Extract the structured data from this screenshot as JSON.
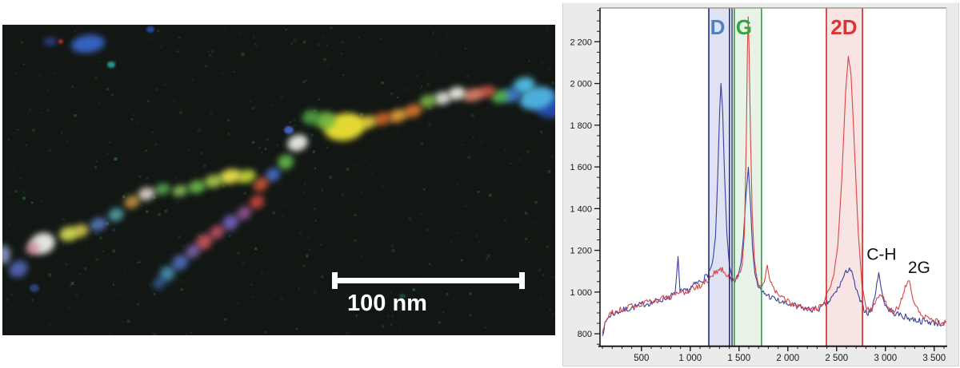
{
  "figure": {
    "description": "TERS map of a branched carbon nanostructure with corresponding Raman spectra"
  },
  "left_image": {
    "background": "#121714",
    "scale_bar": {
      "label": "100 nm"
    },
    "blobs": [
      [
        692,
        100,
        26,
        16,
        -15,
        "#2b4fb8",
        0.9
      ],
      [
        668,
        92,
        22,
        14,
        -15,
        "#4fb6e6",
        0.95
      ],
      [
        652,
        76,
        14,
        10,
        -15,
        "#55c4ea",
        0.9
      ],
      [
        636,
        88,
        12,
        9,
        -10,
        "#3f7fd4",
        0.9
      ],
      [
        622,
        90,
        11,
        8,
        -10,
        "#57b84e",
        0.9
      ],
      [
        605,
        84,
        12,
        7,
        -12,
        "#cf5a48",
        0.9
      ],
      [
        588,
        88,
        13,
        8,
        -12,
        "#e2836a",
        0.9
      ],
      [
        568,
        86,
        11,
        8,
        -10,
        "#efece2",
        0.95
      ],
      [
        550,
        92,
        11,
        8,
        -10,
        "#e6e6de",
        0.9
      ],
      [
        532,
        96,
        11,
        8,
        -14,
        "#7fb349",
        0.9
      ],
      [
        513,
        108,
        12,
        8,
        -18,
        "#d9782e",
        0.9
      ],
      [
        494,
        114,
        12,
        8,
        -18,
        "#e6a23b",
        0.9
      ],
      [
        475,
        118,
        11,
        8,
        -18,
        "#d2652c",
        0.9
      ],
      [
        457,
        122,
        11,
        8,
        -15,
        "#e4c93a",
        0.9
      ],
      [
        428,
        128,
        26,
        17,
        -10,
        "#efe336",
        0.95
      ],
      [
        404,
        120,
        13,
        11,
        -10,
        "#79bf42",
        0.9
      ],
      [
        386,
        116,
        11,
        9,
        -10,
        "#54ab46",
        0.85
      ],
      [
        369,
        148,
        13,
        10,
        -20,
        "#ecece6",
        0.95
      ],
      [
        358,
        132,
        6,
        5,
        0,
        "#4a66cc",
        0.9
      ],
      [
        354,
        172,
        10,
        9,
        -30,
        "#65bd4d",
        0.9
      ],
      [
        338,
        188,
        10,
        8,
        -35,
        "#4a74d2",
        0.85
      ],
      [
        323,
        200,
        10,
        8,
        -40,
        "#cc5436",
        0.9
      ],
      [
        305,
        190,
        12,
        8,
        -15,
        "#c8dc3e",
        0.9
      ],
      [
        285,
        190,
        14,
        9,
        -12,
        "#e6e04a",
        0.95
      ],
      [
        264,
        196,
        12,
        8,
        -12,
        "#a8cc48",
        0.9
      ],
      [
        243,
        203,
        11,
        8,
        -14,
        "#6dbb4e",
        0.9
      ],
      [
        222,
        208,
        10,
        7,
        -14,
        "#8ec464",
        0.85
      ],
      [
        200,
        206,
        10,
        7,
        -14,
        "#5dae52",
        0.85
      ],
      [
        180,
        212,
        11,
        8,
        -16,
        "#e2d5cc",
        0.9
      ],
      [
        162,
        222,
        10,
        8,
        -20,
        "#c49a42",
        0.85
      ],
      [
        142,
        238,
        10,
        8,
        -24,
        "#57a8ae",
        0.85
      ],
      [
        120,
        250,
        11,
        8,
        -20,
        "#5b7ec8",
        0.85
      ],
      [
        98,
        258,
        10,
        8,
        -16,
        "#d8ce52",
        0.85
      ],
      [
        83,
        262,
        12,
        9,
        -12,
        "#d8e056",
        0.9
      ],
      [
        50,
        274,
        16,
        13,
        -20,
        "#efefe8",
        0.95
      ],
      [
        38,
        280,
        9,
        8,
        -20,
        "#d690a6",
        0.8
      ],
      [
        20,
        306,
        12,
        10,
        -30,
        "#5a6cc8",
        0.85
      ],
      [
        2,
        288,
        8,
        12,
        0,
        "#9aa8dc",
        0.8
      ],
      [
        318,
        222,
        10,
        8,
        -40,
        "#c64a3a",
        0.9
      ],
      [
        302,
        236,
        10,
        8,
        -40,
        "#a45aa0",
        0.8
      ],
      [
        285,
        248,
        11,
        9,
        -40,
        "#7a66c6",
        0.85
      ],
      [
        268,
        260,
        10,
        8,
        -40,
        "#c25468",
        0.85
      ],
      [
        252,
        272,
        11,
        9,
        -40,
        "#cc5560",
        0.9
      ],
      [
        238,
        284,
        10,
        8,
        -40,
        "#8a6ab8",
        0.8
      ],
      [
        222,
        298,
        11,
        9,
        -40,
        "#5272c4",
        0.85
      ],
      [
        206,
        312,
        10,
        9,
        -40,
        "#4e9ec2",
        0.8
      ],
      [
        196,
        324,
        8,
        7,
        -40,
        "#3f6ab0",
        0.7
      ],
      [
        107,
        24,
        21,
        11,
        -8,
        "#3a6ad4",
        0.9
      ],
      [
        60,
        21,
        8,
        4,
        0,
        "#3a58c0",
        0.85
      ],
      [
        73,
        21,
        3,
        3,
        0,
        "#b23430",
        0.9
      ],
      [
        185,
        6,
        5,
        4,
        0,
        "#2f50c0",
        0.8
      ],
      [
        136,
        50,
        5,
        4,
        0,
        "#2fb0ac",
        0.8
      ],
      [
        40,
        330,
        6,
        5,
        0,
        "#4060b8",
        0.55
      ],
      [
        500,
        340,
        4,
        3,
        0,
        "#2c8060",
        0.5
      ]
    ]
  },
  "chart_data": {
    "type": "line",
    "title": "",
    "xlabel": "",
    "ylabel": "",
    "x_range": [
      75,
      3625
    ],
    "y_range": [
      743,
      2362
    ],
    "grid": false,
    "legend_position": "none",
    "x_axis": {
      "major": [
        {
          "v": 500,
          "label": "500"
        },
        {
          "v": 1000,
          "label": "1 000"
        },
        {
          "v": 1500,
          "label": "1 500"
        },
        {
          "v": 2000,
          "label": "2 000"
        },
        {
          "v": 2500,
          "label": "2 500"
        },
        {
          "v": 3000,
          "label": "3 000"
        },
        {
          "v": 3500,
          "label": "3 500"
        }
      ],
      "minor_start": 100,
      "minor_end": 3600,
      "minor_step": 100
    },
    "y_axis": {
      "major": [
        {
          "v": 800,
          "label": "800"
        },
        {
          "v": 1000,
          "label": "1 000"
        },
        {
          "v": 1200,
          "label": "1 200"
        },
        {
          "v": 1400,
          "label": "1 400"
        },
        {
          "v": 1600,
          "label": "1 600"
        },
        {
          "v": 1800,
          "label": "1 800"
        },
        {
          "v": 2000,
          "label": "2 000"
        },
        {
          "v": 2200,
          "label": "2 200"
        }
      ],
      "minor_start": 750,
      "minor_end": 2350,
      "minor_step": 50
    },
    "bands": [
      {
        "label": "D",
        "x1": 1190,
        "x2": 1402,
        "fill": "#4a5eb8",
        "fill_opacity": 0.18,
        "edge": "#1f2d7a",
        "label_color": "#4f81bd",
        "label_x": 1280
      },
      {
        "label": "G",
        "x1": 1451,
        "x2": 1730,
        "fill": "#5fae5f",
        "fill_opacity": 0.15,
        "edge": "#2e9e44",
        "label_color": "#2fa73c",
        "label_x": 1550
      },
      {
        "label": "2D",
        "x1": 2395,
        "x2": 2765,
        "fill": "#d96060",
        "fill_opacity": 0.17,
        "edge": "#cc2a2a",
        "label_color": "#e03232",
        "label_x": 2575
      }
    ],
    "separator_line": {
      "x": 1428,
      "color": "#1b2a6e"
    },
    "annotations": [
      {
        "text": "C-H",
        "x": 2960,
        "y": 1185,
        "color": "#111111"
      },
      {
        "text": "2G",
        "x": 3345,
        "y": 1122,
        "color": "#111111"
      }
    ],
    "noise_amplitude": 16,
    "series": [
      {
        "name": "blue spectrum",
        "color": "#3a3f9e",
        "points": [
          [
            100,
            790
          ],
          [
            125,
            845
          ],
          [
            160,
            880
          ],
          [
            200,
            895
          ],
          [
            260,
            905
          ],
          [
            330,
            915
          ],
          [
            400,
            925
          ],
          [
            470,
            935
          ],
          [
            540,
            945
          ],
          [
            610,
            950
          ],
          [
            680,
            960
          ],
          [
            740,
            970
          ],
          [
            800,
            980
          ],
          [
            845,
            990
          ],
          [
            875,
            1170
          ],
          [
            895,
            1000
          ],
          [
            935,
            1000
          ],
          [
            980,
            1010
          ],
          [
            1030,
            1030
          ],
          [
            1080,
            1045
          ],
          [
            1130,
            1060
          ],
          [
            1180,
            1085
          ],
          [
            1225,
            1125
          ],
          [
            1258,
            1260
          ],
          [
            1282,
            1560
          ],
          [
            1302,
            1880
          ],
          [
            1315,
            2000
          ],
          [
            1332,
            1870
          ],
          [
            1352,
            1550
          ],
          [
            1375,
            1280
          ],
          [
            1400,
            1130
          ],
          [
            1430,
            1062
          ],
          [
            1462,
            1052
          ],
          [
            1492,
            1082
          ],
          [
            1520,
            1140
          ],
          [
            1545,
            1265
          ],
          [
            1572,
            1470
          ],
          [
            1596,
            1600
          ],
          [
            1616,
            1430
          ],
          [
            1638,
            1215
          ],
          [
            1662,
            1090
          ],
          [
            1692,
            1032
          ],
          [
            1730,
            1002
          ],
          [
            1780,
            988
          ],
          [
            1840,
            972
          ],
          [
            1900,
            958
          ],
          [
            1960,
            946
          ],
          [
            2020,
            940
          ],
          [
            2080,
            932
          ],
          [
            2140,
            926
          ],
          [
            2200,
            918
          ],
          [
            2260,
            915
          ],
          [
            2320,
            921
          ],
          [
            2380,
            936
          ],
          [
            2430,
            958
          ],
          [
            2480,
            992
          ],
          [
            2520,
            1022
          ],
          [
            2565,
            1065
          ],
          [
            2605,
            1102
          ],
          [
            2632,
            1115
          ],
          [
            2662,
            1082
          ],
          [
            2700,
            1012
          ],
          [
            2740,
            958
          ],
          [
            2782,
            916
          ],
          [
            2822,
            900
          ],
          [
            2862,
            918
          ],
          [
            2902,
            1005
          ],
          [
            2932,
            1100
          ],
          [
            2955,
            1018
          ],
          [
            2985,
            955
          ],
          [
            3025,
            920
          ],
          [
            3080,
            902
          ],
          [
            3140,
            892
          ],
          [
            3205,
            880
          ],
          [
            3280,
            870
          ],
          [
            3360,
            862
          ],
          [
            3440,
            858
          ],
          [
            3525,
            852
          ],
          [
            3600,
            846
          ],
          [
            3650,
            838
          ]
        ]
      },
      {
        "name": "red spectrum",
        "color": "#d94444",
        "points": [
          [
            100,
            800
          ],
          [
            125,
            852
          ],
          [
            160,
            886
          ],
          [
            200,
            900
          ],
          [
            260,
            910
          ],
          [
            330,
            920
          ],
          [
            400,
            930
          ],
          [
            470,
            940
          ],
          [
            545,
            950
          ],
          [
            620,
            958
          ],
          [
            700,
            966
          ],
          [
            780,
            976
          ],
          [
            860,
            986
          ],
          [
            940,
            998
          ],
          [
            1020,
            1012
          ],
          [
            1100,
            1030
          ],
          [
            1180,
            1055
          ],
          [
            1245,
            1088
          ],
          [
            1308,
            1115
          ],
          [
            1360,
            1092
          ],
          [
            1412,
            1066
          ],
          [
            1460,
            1060
          ],
          [
            1502,
            1082
          ],
          [
            1532,
            1132
          ],
          [
            1556,
            1290
          ],
          [
            1574,
            1720
          ],
          [
            1586,
            2160
          ],
          [
            1594,
            2320
          ],
          [
            1604,
            2140
          ],
          [
            1618,
            1740
          ],
          [
            1634,
            1380
          ],
          [
            1658,
            1150
          ],
          [
            1684,
            1062
          ],
          [
            1712,
            1032
          ],
          [
            1748,
            1030
          ],
          [
            1790,
            1130
          ],
          [
            1822,
            1042
          ],
          [
            1862,
            1010
          ],
          [
            1912,
            982
          ],
          [
            1972,
            960
          ],
          [
            2032,
            946
          ],
          [
            2092,
            932
          ],
          [
            2152,
            920
          ],
          [
            2212,
            912
          ],
          [
            2272,
            916
          ],
          [
            2332,
            926
          ],
          [
            2392,
            978
          ],
          [
            2432,
            1012
          ],
          [
            2472,
            1082
          ],
          [
            2512,
            1225
          ],
          [
            2552,
            1530
          ],
          [
            2592,
            1960
          ],
          [
            2620,
            2130
          ],
          [
            2648,
            2045
          ],
          [
            2682,
            1700
          ],
          [
            2722,
            1280
          ],
          [
            2762,
            1022
          ],
          [
            2802,
            930
          ],
          [
            2842,
            906
          ],
          [
            2882,
            932
          ],
          [
            2922,
            972
          ],
          [
            2952,
            992
          ],
          [
            2992,
            956
          ],
          [
            3042,
            920
          ],
          [
            3092,
            906
          ],
          [
            3142,
            932
          ],
          [
            3182,
            992
          ],
          [
            3222,
            1052
          ],
          [
            3246,
            1062
          ],
          [
            3272,
            990
          ],
          [
            3312,
            926
          ],
          [
            3362,
            890
          ],
          [
            3422,
            875
          ],
          [
            3482,
            865
          ],
          [
            3552,
            858
          ],
          [
            3622,
            848
          ],
          [
            3650,
            842
          ]
        ]
      }
    ]
  }
}
